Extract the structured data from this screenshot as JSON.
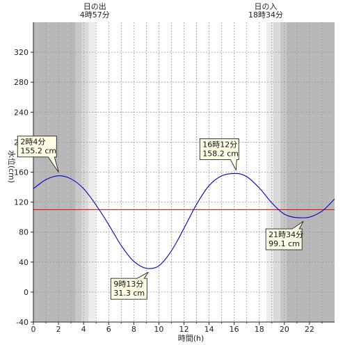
{
  "chart_data": {
    "type": "line",
    "title": "",
    "xlabel": "時間(h)",
    "ylabel": "水位(cm)",
    "xlim": [
      0,
      24
    ],
    "ylim": [
      -40,
      360
    ],
    "x_ticks": [
      0,
      2,
      4,
      6,
      8,
      10,
      12,
      14,
      16,
      18,
      20,
      22
    ],
    "y_ticks": [
      -40,
      0,
      40,
      80,
      120,
      160,
      200,
      240,
      280,
      320
    ],
    "grid": true,
    "reference_line": {
      "y": 110,
      "color": "#e00000"
    },
    "series": [
      {
        "color": "#0000cc",
        "x": [
          0,
          1,
          2.07,
          3,
          4,
          5,
          6,
          7,
          8,
          9.22,
          10,
          11,
          12,
          13,
          14,
          15,
          16.2,
          17,
          18,
          19,
          20,
          21.57,
          23,
          24
        ],
        "values": [
          138,
          150,
          155.2,
          151,
          138,
          116,
          90,
          62,
          41,
          31.3,
          35,
          55,
          85,
          117,
          142,
          155,
          158.2,
          154,
          139,
          119,
          104,
          99.1,
          108,
          124
        ]
      }
    ],
    "annotations": [
      {
        "time": "2時4分",
        "value": "155.2 cm",
        "x": 2.07,
        "y": 155.2
      },
      {
        "time": "9時13分",
        "value": "31.3 cm",
        "x": 9.22,
        "y": 31.3
      },
      {
        "time": "16時12分",
        "value": "158.2 cm",
        "x": 16.2,
        "y": 158.2
      },
      {
        "time": "21時34分",
        "value": "99.1 cm",
        "x": 21.57,
        "y": 99.1
      }
    ],
    "sunrise": {
      "label": "日の出",
      "time": "4時57分",
      "hour": 4.95
    },
    "sunset": {
      "label": "日の入",
      "time": "18時34分",
      "hour": 18.57
    },
    "colors": {
      "night": "#b8b8b8",
      "twilight_dark": "#c8c8c8",
      "twilight_mid": "#dadada",
      "twilight_light": "#ececec",
      "day": "#ffffff",
      "grid": "#999999"
    }
  }
}
